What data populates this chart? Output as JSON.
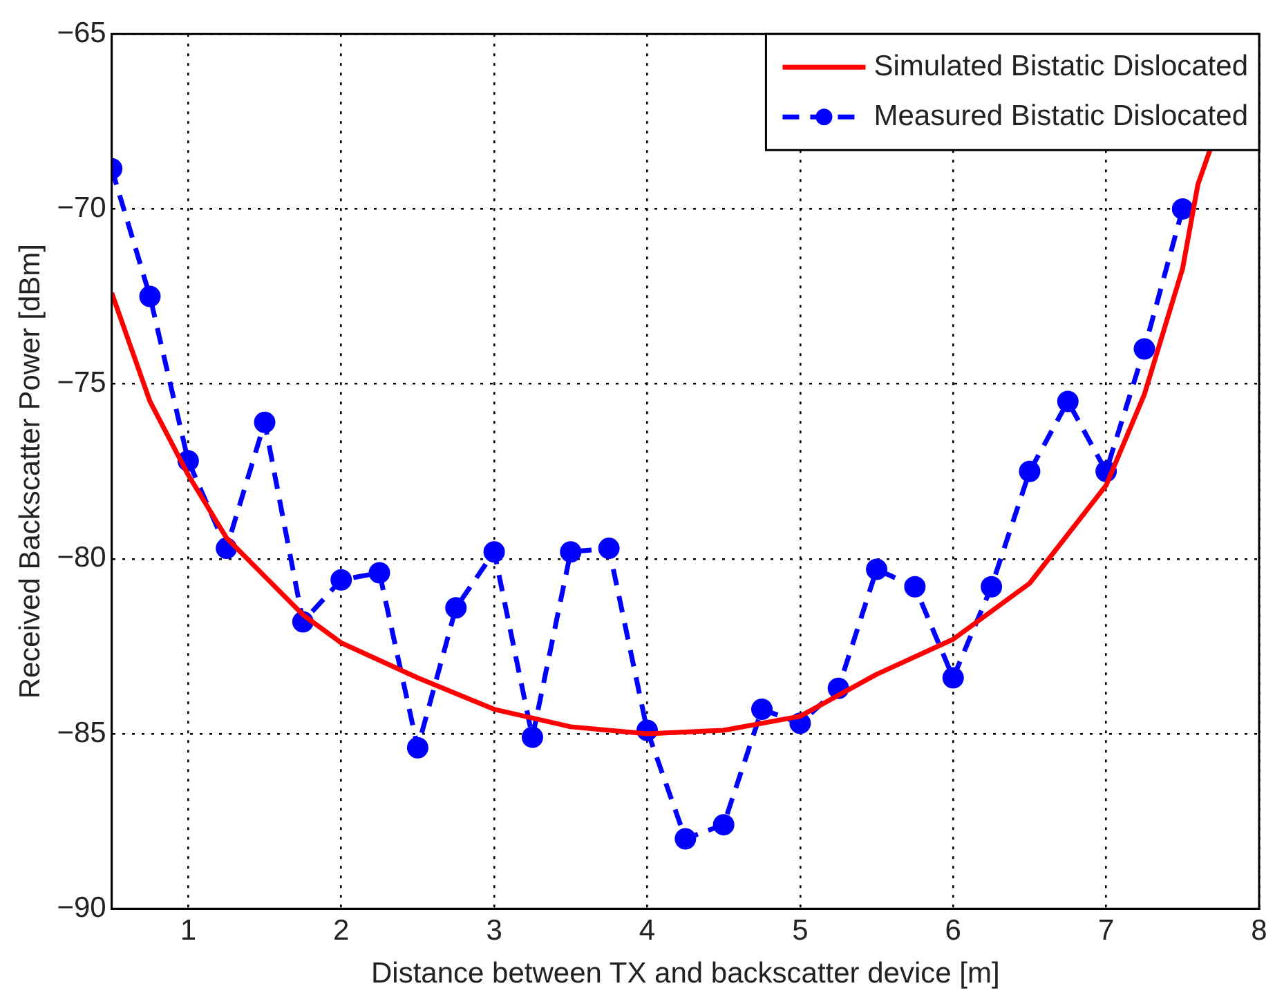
{
  "chart_data": {
    "type": "line",
    "xlabel": "Distance between TX and backscatter device [m]",
    "ylabel": "Received Backscatter Power [dBm]",
    "xlim": [
      0.5,
      8
    ],
    "xticks": [
      1,
      2,
      3,
      4,
      5,
      6,
      7,
      8
    ],
    "ylim": [
      -90,
      -65
    ],
    "yticks": [
      -90,
      -85,
      -80,
      -75,
      -70,
      -65
    ],
    "grid": true,
    "legend": "top right",
    "series": [
      {
        "name": "Simulated Bistatic Dislocated",
        "color": "#ff0000",
        "marker": "none",
        "line_style": "solid",
        "x": [
          0.5,
          0.75,
          1,
          1.25,
          1.5,
          1.75,
          2,
          2.5,
          3,
          3.5,
          4,
          4.5,
          5,
          5.5,
          6,
          6.5,
          7,
          7.25,
          7.5,
          7.6,
          7.68
        ],
        "values": [
          -72.4,
          -75.5,
          -77.6,
          -79.4,
          -80.5,
          -81.6,
          -82.4,
          -83.4,
          -84.3,
          -84.8,
          -85,
          -84.9,
          -84.5,
          -83.3,
          -82.3,
          -80.7,
          -77.9,
          -75.3,
          -71.7,
          -69.3,
          -68.3
        ]
      },
      {
        "name": "Measured Bistatic Dislocated",
        "color": "#0000ff",
        "marker": "circle",
        "line_style": "dashed",
        "x": [
          0.5,
          0.75,
          1,
          1.25,
          1.5,
          1.75,
          2,
          2.25,
          2.5,
          2.75,
          3,
          3.25,
          3.5,
          3.75,
          4,
          4.25,
          4.5,
          4.75,
          5,
          5.25,
          5.5,
          5.75,
          6,
          6.25,
          6.5,
          6.75,
          7,
          7.25,
          7.5
        ],
        "values": [
          -68.85,
          -72.5,
          -77.2,
          -79.7,
          -76.1,
          -81.8,
          -80.6,
          -80.4,
          -85.4,
          -81.4,
          -79.8,
          -85.1,
          -79.8,
          -79.7,
          -84.9,
          -88,
          -87.6,
          -84.3,
          -84.7,
          -83.7,
          -80.3,
          -80.8,
          -83.4,
          -80.8,
          -77.5,
          -75.5,
          -77.5,
          -74,
          -70
        ]
      }
    ]
  }
}
